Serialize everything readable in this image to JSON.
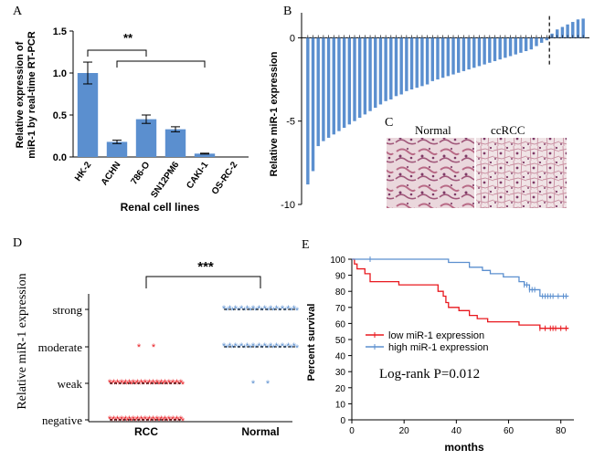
{
  "chart_data": [
    {
      "panel": "A",
      "type": "bar",
      "categories": [
        "HK-2",
        "ACHN",
        "786-O",
        "SN12PM6",
        "CAKI-1",
        "OS-RC-2"
      ],
      "values": [
        1.0,
        0.18,
        0.45,
        0.33,
        0.04,
        0.0
      ],
      "errors": [
        0.13,
        0.02,
        0.05,
        0.03,
        0.005,
        0.0
      ],
      "xlabel": "Renal cell lines",
      "ylabel_line1": "Relative  expression of",
      "ylabel_line2": "miR-1 by real-time RT-PCR",
      "yticks": [
        "0.0",
        "0.5",
        "1.0",
        "1.5"
      ],
      "ylim": [
        0,
        1.5
      ],
      "annotation": "**",
      "color": "#5B8FCF"
    },
    {
      "panel": "B",
      "type": "bar",
      "ylabel": "Relative miR-1 expression",
      "yticks": [
        "0",
        "-5",
        "-10"
      ],
      "ylim": [
        -10,
        1.5
      ],
      "values": [
        -8.8,
        -8.0,
        -6.5,
        -6.2,
        -6.0,
        -5.8,
        -5.6,
        -5.4,
        -5.2,
        -5.0,
        -4.8,
        -4.6,
        -4.4,
        -4.2,
        -4.0,
        -3.8,
        -3.7,
        -3.5,
        -3.4,
        -3.2,
        -3.1,
        -3.0,
        -2.9,
        -2.8,
        -2.6,
        -2.5,
        -2.4,
        -2.3,
        -2.2,
        -2.1,
        -2.0,
        -1.9,
        -1.8,
        -1.7,
        -1.6,
        -1.5,
        -1.4,
        -1.3,
        -1.2,
        -1.1,
        -1.0,
        -0.9,
        -0.8,
        -0.7,
        -0.5,
        -0.3,
        -0.15,
        0.25,
        0.5,
        0.65,
        0.8,
        0.95,
        1.1,
        1.15
      ],
      "color": "#5B8FCF"
    },
    {
      "panel": "D",
      "type": "scatter",
      "ylabel": "Relative miR-1 expression",
      "categories": [
        "RCC",
        "Normal"
      ],
      "levels": [
        "negative",
        "weak",
        "moderate",
        "strong"
      ],
      "annotation": "***",
      "groups": [
        {
          "category": "RCC",
          "counts": {
            "negative": 38,
            "weak": 38,
            "moderate": 2,
            "strong": 0
          },
          "color": "#E8181E"
        },
        {
          "category": "Normal",
          "counts": {
            "negative": 0,
            "weak": 2,
            "moderate": 26,
            "strong": 26
          },
          "color": "#5B8FCF"
        }
      ]
    },
    {
      "panel": "E",
      "type": "line",
      "xlabel": "months",
      "ylabel": "Percent survival",
      "xticks": [
        "0",
        "20",
        "40",
        "60",
        "80"
      ],
      "yticks": [
        "0",
        "10",
        "20",
        "30",
        "40",
        "50",
        "60",
        "70",
        "80",
        "90",
        "100"
      ],
      "xlim": [
        0,
        85
      ],
      "ylim": [
        0,
        100
      ],
      "annotation": "Log-rank P=0.012",
      "series": [
        {
          "name": "low miR-1 expression",
          "color": "#E8181E",
          "x": [
            0,
            1,
            2,
            4,
            5,
            7,
            10,
            12,
            15,
            18,
            21,
            25,
            28,
            31,
            33,
            35,
            36,
            37,
            39,
            41,
            43,
            45,
            48,
            52,
            56,
            60,
            64,
            67,
            72,
            74,
            76,
            78,
            80,
            83
          ],
          "y": [
            100,
            97,
            94,
            94,
            91,
            86,
            86,
            86,
            86,
            84,
            84,
            84,
            84,
            84,
            80,
            77,
            73,
            70,
            70,
            68,
            68,
            65,
            63,
            61,
            61,
            61,
            59,
            59,
            57,
            57,
            57,
            57,
            57,
            57
          ],
          "censor": [
            72,
            74,
            76,
            77,
            78,
            80,
            82
          ]
        },
        {
          "name": "high miR-1 expression",
          "color": "#5B8FCF",
          "x": [
            0,
            8,
            15,
            25,
            35,
            37,
            40,
            45,
            50,
            53,
            56,
            58,
            62,
            64,
            66,
            68,
            70,
            72,
            74,
            80,
            83
          ],
          "y": [
            100,
            100,
            100,
            100,
            100,
            98,
            98,
            95,
            93,
            91,
            91,
            89,
            89,
            86,
            84,
            81,
            81,
            77,
            77,
            77,
            77
          ],
          "censor": [
            7,
            66,
            67,
            68,
            69,
            70,
            73,
            74,
            75,
            76,
            77,
            79,
            81,
            82
          ]
        }
      ]
    }
  ],
  "panels": {
    "a_label": "A",
    "b_label": "B",
    "c_label": "C",
    "d_label": "D",
    "e_label": "E",
    "c_normal": "Normal",
    "c_ccrcc": "ccRCC"
  }
}
